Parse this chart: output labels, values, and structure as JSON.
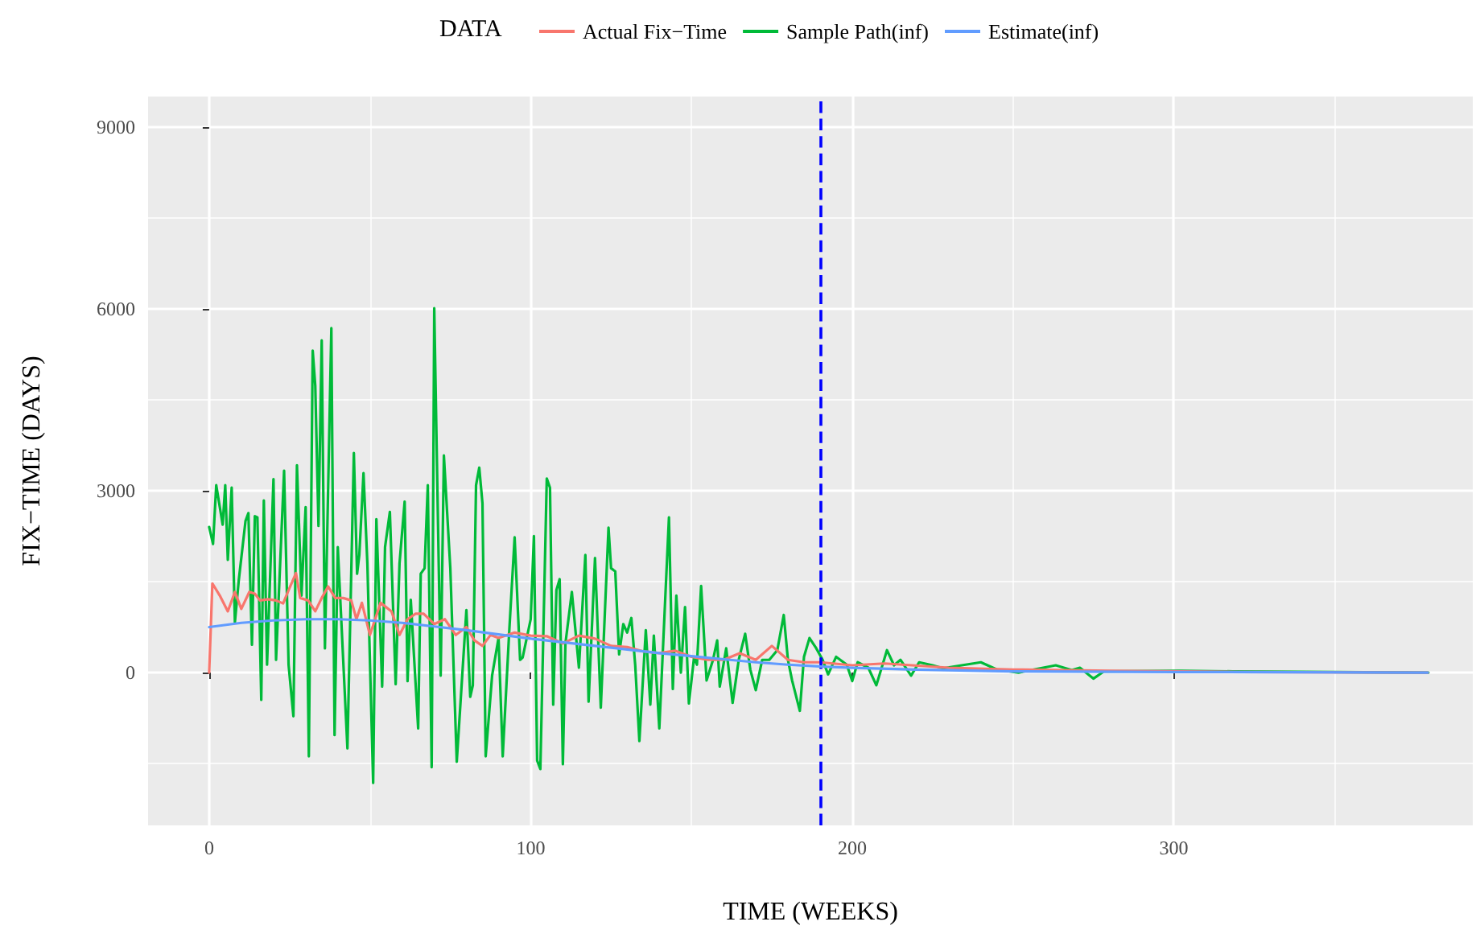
{
  "chart_data": {
    "type": "line",
    "xlabel": "TIME (WEEKS)",
    "ylabel": "FIX−TIME (DAYS)",
    "legend_title": "DATA",
    "legend": "top",
    "xlim": [
      -19,
      393
    ],
    "xticks": [
      0,
      100,
      200,
      300
    ],
    "ylim": [
      -2520,
      9500
    ],
    "yticks": [
      0,
      3000,
      6000,
      9000
    ],
    "grid": true,
    "marker": "none",
    "line_style": "solid",
    "ref_lines": [
      {
        "axis": "x",
        "value": 190,
        "label": null,
        "color": "#0000ff",
        "line_style": "dashed"
      }
    ],
    "series": [
      {
        "name": "Actual Fix−Time",
        "color": "#f8766d",
        "x": [
          0,
          1,
          3.3,
          5.8,
          8,
          10,
          12.5,
          14.2,
          15.8,
          18.3,
          20.8,
          23,
          24.7,
          27,
          28.3,
          30.8,
          33,
          35,
          37,
          39.2,
          41.7,
          44.2,
          45.8,
          47.5,
          50,
          53.3,
          56.7,
          59.2,
          61.7,
          64.2,
          66.7,
          70,
          73.3,
          76.7,
          80,
          82.5,
          85,
          87.5,
          90,
          95,
          100,
          105,
          110,
          115,
          120,
          125,
          130,
          135,
          140,
          145,
          150,
          155,
          160,
          165,
          170,
          175,
          180,
          185,
          190,
          200,
          210,
          230,
          250,
          280,
          320,
          379
        ],
        "values": [
          0,
          1470,
          1270,
          1010,
          1330,
          1050,
          1330,
          1300,
          1190,
          1210,
          1190,
          1140,
          1360,
          1640,
          1230,
          1190,
          1010,
          1230,
          1420,
          1230,
          1230,
          1190,
          880,
          1150,
          620,
          1150,
          1010,
          620,
          880,
          970,
          970,
          800,
          880,
          620,
          750,
          530,
          440,
          620,
          570,
          660,
          610,
          600,
          480,
          610,
          560,
          440,
          420,
          350,
          320,
          360,
          260,
          210,
          210,
          320,
          210,
          440,
          210,
          170,
          170,
          120,
          150,
          80,
          50,
          30,
          10,
          0
        ]
      },
      {
        "name": "Sample Path(inf)",
        "color": "#00ba38",
        "x": [
          0,
          1.2,
          2.2,
          4.2,
          5,
          5.8,
          7,
          8,
          9.2,
          11.3,
          12.2,
          13.3,
          14.2,
          15,
          16.2,
          17,
          18,
          20,
          20.8,
          23.3,
          24.7,
          26.2,
          27.3,
          28.7,
          30,
          31,
          32.2,
          33,
          34,
          35,
          36,
          38,
          39,
          40,
          43,
          45,
          46,
          46.7,
          48,
          49.2,
          51,
          52,
          53.8,
          54.7,
          56.2,
          58,
          59.2,
          60.8,
          61.7,
          62.7,
          65,
          65.8,
          67,
          68,
          69.2,
          70,
          72,
          73,
          75,
          77,
          80,
          81.2,
          82,
          83,
          84,
          85,
          86,
          88,
          90,
          91.3,
          93.3,
          95,
          96.7,
          97.5,
          100,
          101,
          102,
          103,
          105,
          106,
          107,
          108,
          109,
          110,
          110.8,
          112.8,
          115,
          117,
          118,
          120,
          121.8,
          124.2,
          125,
          126.3,
          127.5,
          128.8,
          130,
          131.3,
          132.5,
          133.8,
          135.8,
          137.2,
          138.3,
          140,
          143,
          144.2,
          145.3,
          146.7,
          148,
          149.2,
          150.8,
          151.7,
          153,
          154.7,
          156.7,
          158,
          158.8,
          160.8,
          162.8,
          164.7,
          166.7,
          168.3,
          170,
          172,
          174.2,
          176.7,
          178.7,
          180,
          181.3,
          183.7,
          185,
          186.7,
          188.7,
          190.8,
          192.5,
          195,
          198.3,
          200,
          201.7,
          205,
          207.5,
          210.8,
          213,
          215,
          218.3,
          220.8,
          225,
          228.3,
          231.7,
          240,
          245,
          251.7,
          263.3,
          268.3,
          270.8,
          275,
          278.3,
          301.7,
          318.3,
          379.2
        ],
        "values": [
          2400,
          2120,
          3090,
          2440,
          3090,
          1860,
          3050,
          830,
          1520,
          2500,
          2630,
          460,
          2580,
          2560,
          -450,
          2840,
          130,
          3190,
          210,
          3330,
          130,
          -720,
          3420,
          1270,
          2730,
          -1380,
          5310,
          4730,
          2420,
          5480,
          400,
          5680,
          -1030,
          2070,
          -1250,
          3620,
          1630,
          1940,
          3290,
          1800,
          -1820,
          2530,
          -230,
          2070,
          2650,
          -190,
          1800,
          2820,
          -140,
          1200,
          -920,
          1630,
          1720,
          3090,
          -1560,
          6010,
          -50,
          3580,
          1720,
          -1470,
          1030,
          -400,
          -210,
          3090,
          3380,
          2790,
          -1380,
          -50,
          570,
          -1380,
          660,
          2230,
          210,
          250,
          880,
          2250,
          -1450,
          -1590,
          3200,
          3050,
          -530,
          1360,
          1540,
          -1510,
          480,
          1330,
          80,
          1940,
          -480,
          1890,
          -580,
          2390,
          1720,
          1670,
          300,
          800,
          660,
          900,
          130,
          -1130,
          700,
          -530,
          610,
          -920,
          2560,
          -270,
          1270,
          0,
          1080,
          -510,
          250,
          130,
          1430,
          -130,
          210,
          530,
          -230,
          400,
          -500,
          210,
          640,
          50,
          -290,
          210,
          210,
          370,
          950,
          210,
          -130,
          -630,
          260,
          570,
          410,
          210,
          -30,
          260,
          130,
          -140,
          170,
          80,
          -210,
          370,
          120,
          210,
          -50,
          170,
          120,
          70,
          100,
          170,
          50,
          0,
          120,
          40,
          80,
          -100,
          20,
          30,
          20,
          0
        ]
      },
      {
        "name": "Estimate(inf)",
        "color": "#619cff",
        "x": [
          0,
          10,
          20,
          30,
          40,
          50,
          60,
          70,
          80,
          90,
          100,
          110,
          120,
          130,
          140,
          150,
          160,
          170,
          180,
          190,
          200,
          220,
          250,
          300,
          379
        ],
        "values": [
          750,
          820,
          860,
          880,
          880,
          860,
          820,
          760,
          700,
          630,
          560,
          500,
          440,
          380,
          320,
          270,
          220,
          170,
          130,
          100,
          80,
          50,
          20,
          10,
          0
        ]
      }
    ]
  }
}
